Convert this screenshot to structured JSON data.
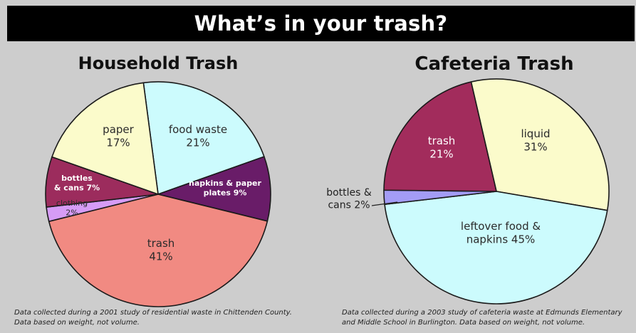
{
  "title": "What’s in your trash?",
  "charts": [
    {
      "title": "Household Trash",
      "note": "Data collected during a 2001 study of residential waste in Chittenden County.\nData based on weight, not volume."
    },
    {
      "title": "Cafeteria Trash",
      "note": "Data collected during a 2003 study of cafeteria waste at Edmunds Elementary\nand Middle School in Burlington. Data based on weight, not volume."
    }
  ],
  "chart_data": [
    {
      "type": "pie",
      "title": "Household Trash",
      "unit": "%",
      "slices": [
        {
          "label": "food waste",
          "value": 21,
          "color": "#ccfbfd",
          "label_lines": [
            "food waste",
            "21%"
          ],
          "text_color": "#2b2b2b"
        },
        {
          "label": "napkins & paper plates",
          "value": 9,
          "color": "#691c68",
          "label_lines": [
            "napkins & paper",
            "plates 9%"
          ],
          "text_color": "#ffffff"
        },
        {
          "label": "trash",
          "value": 41,
          "color": "#f18a82",
          "label_lines": [
            "trash",
            "41%"
          ],
          "text_color": "#2b2b2b"
        },
        {
          "label": "clothing",
          "value": 2,
          "color": "#d69cf6",
          "label_lines": [
            "clothing",
            "2%"
          ],
          "text_color": "#2b2b2b"
        },
        {
          "label": "bottles & cans",
          "value": 7,
          "color": "#9c2c5d",
          "label_lines": [
            "bottles",
            "& cans 7%"
          ],
          "text_color": "#ffffff"
        },
        {
          "label": "paper",
          "value": 17,
          "color": "#fbfbcb",
          "label_lines": [
            "paper",
            "17%"
          ],
          "text_color": "#2b2b2b"
        }
      ]
    },
    {
      "type": "pie",
      "title": "Cafeteria Trash",
      "unit": "%",
      "slices": [
        {
          "label": "liquid",
          "value": 31,
          "color": "#fbfbcb",
          "label_lines": [
            "liquid",
            "31%"
          ],
          "text_color": "#2b2b2b"
        },
        {
          "label": "leftover food & napkins",
          "value": 45,
          "color": "#ccfbfd",
          "label_lines": [
            "leftover food &",
            "napkins 45%"
          ],
          "text_color": "#2b2b2b"
        },
        {
          "label": "bottles & cans",
          "value": 2,
          "color": "#a39cf6",
          "label_lines": [
            "bottles &",
            "cans 2%"
          ],
          "text_color": "#2b2b2b"
        },
        {
          "label": "trash",
          "value": 21,
          "color": "#a22c5c",
          "label_lines": [
            "trash",
            "21%"
          ],
          "text_color": "#ffffff"
        }
      ]
    }
  ]
}
